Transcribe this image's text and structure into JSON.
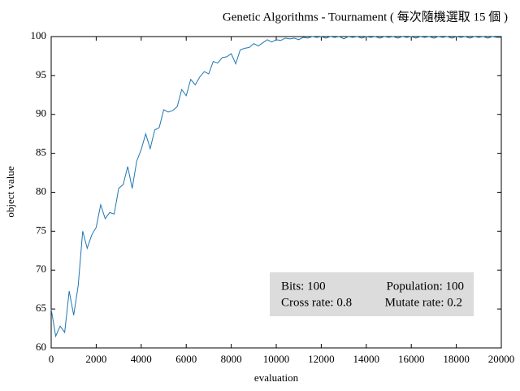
{
  "chart_data": {
    "type": "line",
    "title": "Genetic Algorithms - Tournament ( 每次隨機選取 15 個 )",
    "xlabel": "evaluation",
    "ylabel": "object value",
    "x": [
      0,
      200,
      400,
      600,
      800,
      1000,
      1200,
      1400,
      1600,
      1800,
      2000,
      2200,
      2400,
      2600,
      2800,
      3000,
      3200,
      3400,
      3600,
      3800,
      4000,
      4200,
      4400,
      4600,
      4800,
      5000,
      5200,
      5400,
      5600,
      5800,
      6000,
      6200,
      6400,
      6600,
      6800,
      7000,
      7200,
      7400,
      7600,
      7800,
      8000,
      8200,
      8400,
      8600,
      8800,
      9000,
      9200,
      9400,
      9600,
      9800,
      10000,
      10200,
      10400,
      10600,
      10800,
      11000,
      11200,
      11400,
      11600,
      11800,
      12000,
      12200,
      12400,
      12600,
      12800,
      13000,
      13200,
      13400,
      13600,
      13800,
      14000,
      14200,
      14400,
      14600,
      14800,
      15000,
      15200,
      15400,
      15600,
      15800,
      16000,
      16200,
      16400,
      16600,
      16800,
      17000,
      17200,
      17400,
      17600,
      17800,
      18000,
      18200,
      18400,
      18600,
      18800,
      19000,
      19200,
      19400,
      19600,
      19800,
      20000
    ],
    "values": [
      65,
      61.5,
      62.8,
      62,
      67.3,
      64.2,
      68,
      75,
      72.8,
      74.5,
      75.5,
      78.4,
      76.6,
      77.4,
      77.2,
      80.5,
      81,
      83.3,
      80.5,
      84,
      85.5,
      87.5,
      85.6,
      88,
      88.3,
      90.6,
      90.3,
      90.5,
      91,
      93.2,
      92.4,
      94.5,
      93.8,
      94.8,
      95.5,
      95.2,
      96.8,
      96.6,
      97.3,
      97.4,
      97.8,
      96.5,
      98.3,
      98.5,
      98.6,
      99.1,
      98.8,
      99.2,
      99.6,
      99.3,
      99.6,
      99.5,
      99.8,
      99.7,
      99.8,
      99.6,
      99.9,
      99.8,
      100,
      99.9,
      100,
      99.8,
      100,
      99.9,
      100,
      99.7,
      100,
      99.9,
      100,
      99.8,
      100,
      99.9,
      100,
      99.8,
      100,
      99.9,
      100,
      99.8,
      100,
      99.9,
      100,
      99.8,
      100,
      99.9,
      100,
      99.8,
      100,
      99.9,
      100,
      99.8,
      100,
      99.9,
      100,
      99.8,
      100,
      99.9,
      100,
      99.8,
      100,
      99.9,
      99.9
    ],
    "color": "#1f77b4",
    "xlim": [
      0,
      20000
    ],
    "ylim": [
      60,
      100
    ],
    "xticks": [
      0,
      2000,
      4000,
      6000,
      8000,
      10000,
      12000,
      14000,
      16000,
      18000,
      20000
    ],
    "yticks": [
      60,
      65,
      70,
      75,
      80,
      85,
      90,
      95,
      100
    ],
    "annotations": [
      "Bits: 100",
      "Population: 100",
      "Cross rate: 0.8",
      "Mutate rate: 0.2"
    ]
  }
}
